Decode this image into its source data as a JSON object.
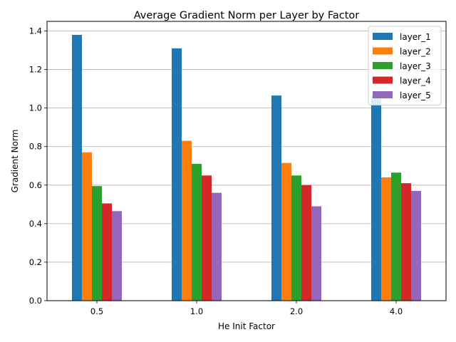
{
  "chart_data": {
    "type": "bar",
    "title": "Average Gradient Norm per Layer by Factor",
    "xlabel": "He Init Factor",
    "ylabel": "Gradient Norm",
    "categories": [
      "0.5",
      "1.0",
      "2.0",
      "4.0"
    ],
    "ylim": [
      0,
      1.45
    ],
    "yticks": [
      "0.0",
      "0.2",
      "0.4",
      "0.6",
      "0.8",
      "1.0",
      "1.2",
      "1.4"
    ],
    "grid": "horizontal",
    "legend_position": "top-right",
    "series": [
      {
        "name": "layer_1",
        "color": "#1f77b4",
        "values": [
          1.38,
          1.31,
          1.065,
          1.065
        ]
      },
      {
        "name": "layer_2",
        "color": "#ff7f0e",
        "values": [
          0.77,
          0.83,
          0.715,
          0.64
        ]
      },
      {
        "name": "layer_3",
        "color": "#2ca02c",
        "values": [
          0.595,
          0.71,
          0.65,
          0.665
        ]
      },
      {
        "name": "layer_4",
        "color": "#d62728",
        "values": [
          0.505,
          0.65,
          0.6,
          0.61
        ]
      },
      {
        "name": "layer_5",
        "color": "#9467bd",
        "values": [
          0.465,
          0.56,
          0.49,
          0.57
        ]
      }
    ]
  }
}
